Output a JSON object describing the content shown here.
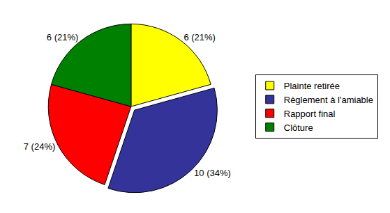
{
  "chart_data": {
    "type": "pie",
    "categories": [
      "Plainte retirée",
      "Règlement à l'amiable",
      "Rapport final",
      "Clôture"
    ],
    "values": [
      6,
      10,
      7,
      6
    ],
    "value_labels": [
      "6 (21%)",
      "10 (34%)",
      "7 (24%)",
      "6 (21%)"
    ],
    "colors": [
      "#ffff00",
      "#333399",
      "#ff0000",
      "#008000"
    ],
    "data_labels": true,
    "legend": "right"
  }
}
